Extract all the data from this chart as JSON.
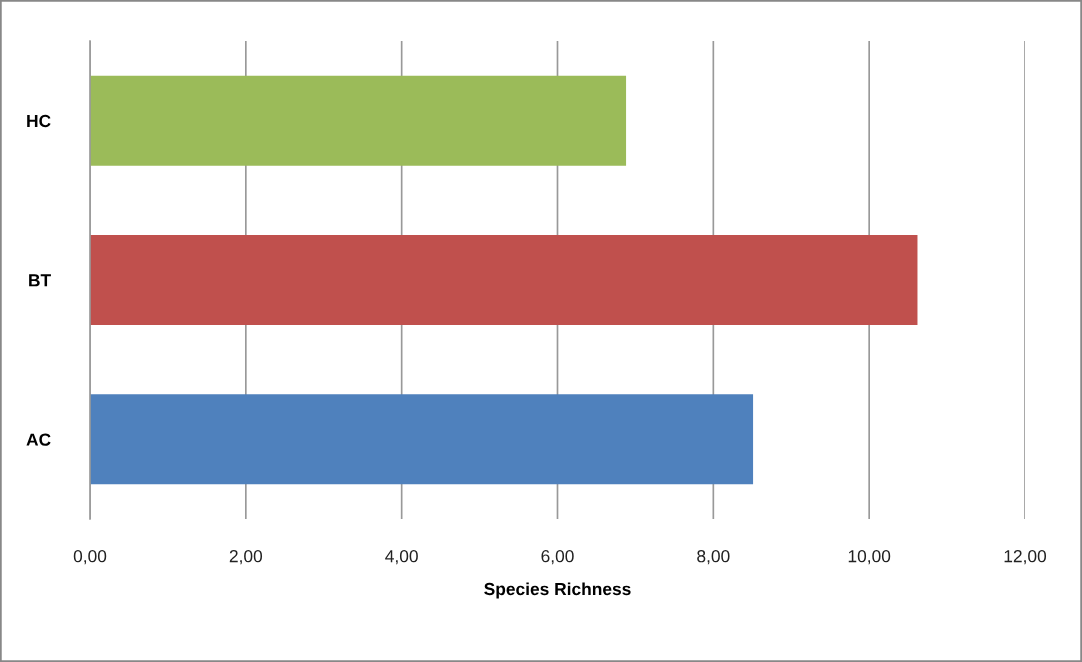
{
  "chart_data": {
    "type": "bar",
    "orientation": "horizontal",
    "xlabel": "Species Richness",
    "categories": [
      "HC",
      "BT",
      "AC"
    ],
    "values": [
      6.88,
      10.62,
      8.51
    ],
    "colors": [
      "#9bbb59",
      "#c0504d",
      "#4f81bd"
    ],
    "xlim": [
      0,
      12
    ],
    "xticks": [
      {
        "value": 0,
        "label": "0,00"
      },
      {
        "value": 2,
        "label": "2,00"
      },
      {
        "value": 4,
        "label": "4,00"
      },
      {
        "value": 6,
        "label": "6,00"
      },
      {
        "value": 8,
        "label": "8,00"
      },
      {
        "value": 10,
        "label": "10,00"
      },
      {
        "value": 12,
        "label": "12,00"
      }
    ],
    "grid": "x"
  }
}
